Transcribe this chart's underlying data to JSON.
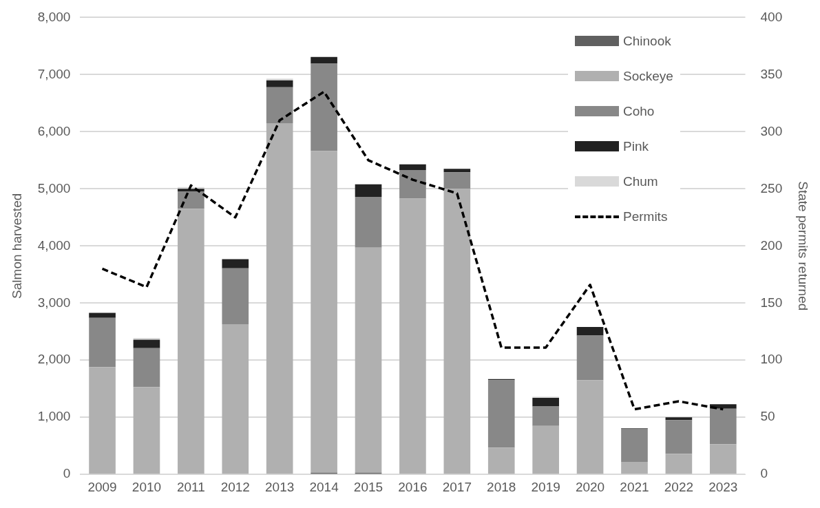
{
  "chart_data": {
    "type": "bar",
    "stacked": true,
    "ylabel": "Salmon harvested",
    "y2label": "State permits returned",
    "categories": [
      "2009",
      "2010",
      "2011",
      "2012",
      "2013",
      "2014",
      "2015",
      "2016",
      "2017",
      "2018",
      "2019",
      "2020",
      "2021",
      "2022",
      "2023"
    ],
    "series": [
      {
        "name": "Chinook",
        "color": "#606060",
        "values": [
          0,
          0,
          0,
          0,
          0,
          30,
          30,
          0,
          0,
          0,
          0,
          0,
          0,
          0,
          0
        ]
      },
      {
        "name": "Sockeye",
        "color": "#b0b0b0",
        "values": [
          1880,
          1530,
          4650,
          2630,
          6150,
          5630,
          3940,
          4830,
          5000,
          470,
          850,
          1650,
          220,
          360,
          530
        ]
      },
      {
        "name": "Coho",
        "color": "#888888",
        "values": [
          860,
          680,
          300,
          980,
          630,
          1530,
          890,
          500,
          290,
          1180,
          340,
          780,
          580,
          590,
          620
        ]
      },
      {
        "name": "Pink",
        "color": "#222222",
        "values": [
          90,
          150,
          50,
          160,
          120,
          120,
          220,
          100,
          60,
          20,
          150,
          150,
          10,
          50,
          80
        ]
      },
      {
        "name": "Chum",
        "color": "#d9d9d9",
        "values": [
          0,
          30,
          30,
          0,
          30,
          0,
          0,
          0,
          0,
          0,
          20,
          0,
          0,
          0,
          0
        ]
      },
      {
        "name": "Permits",
        "type": "line",
        "axis": "y2",
        "color": "#000000",
        "line_style": "dashed",
        "values": [
          180,
          164,
          253,
          225,
          310,
          335,
          275,
          258,
          246,
          111,
          111,
          166,
          57,
          64,
          57
        ]
      }
    ],
    "ylim": [
      0,
      8000
    ],
    "yticks": [
      {
        "value": 0,
        "label": "0"
      },
      {
        "value": 1000,
        "label": "1,000"
      },
      {
        "value": 2000,
        "label": "2,000"
      },
      {
        "value": 3000,
        "label": "3,000"
      },
      {
        "value": 4000,
        "label": "4,000"
      },
      {
        "value": 5000,
        "label": "5,000"
      },
      {
        "value": 6000,
        "label": "6,000"
      },
      {
        "value": 7000,
        "label": "7,000"
      },
      {
        "value": 8000,
        "label": "8,000"
      }
    ],
    "y2lim": [
      0,
      400
    ],
    "y2ticks": [
      0,
      50,
      100,
      150,
      200,
      250,
      300,
      350,
      400
    ],
    "grid": "y",
    "legend": "top right",
    "marker": "none"
  }
}
